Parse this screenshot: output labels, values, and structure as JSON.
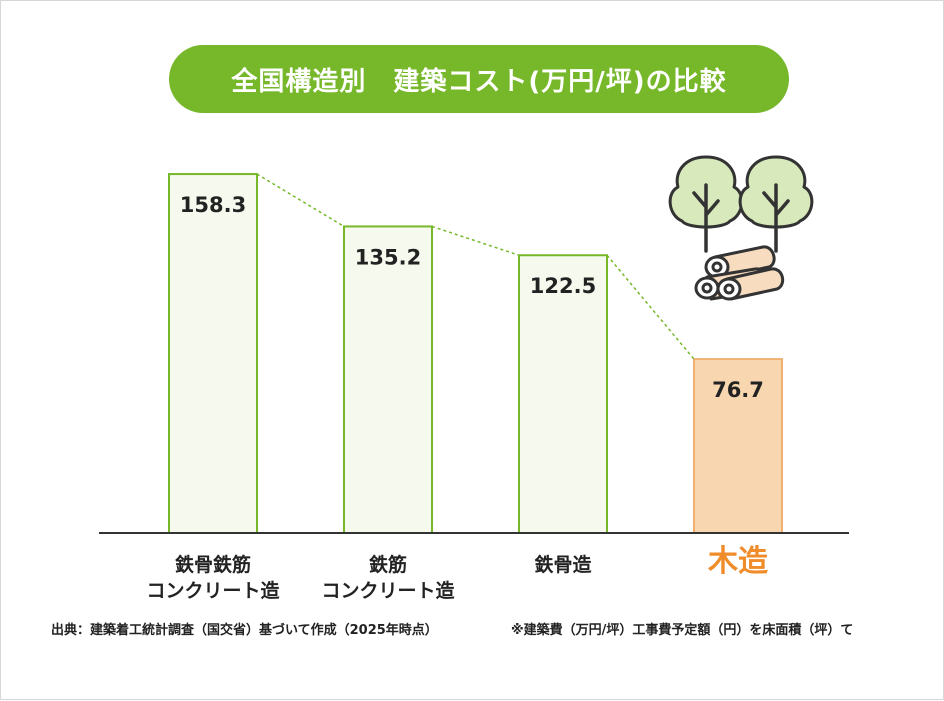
{
  "colors": {
    "accent": "#76b82a",
    "bar_fill": "#f5f9ee",
    "bar_stroke": "#76b82a",
    "highlight_fill": "#f8d7b0",
    "highlight_stroke": "#f0b170",
    "highlight_text": "#f08c2a",
    "axis": "#333333",
    "connector": "#76b82a"
  },
  "chart_data": {
    "type": "bar",
    "title": "全国構造別　建築コスト(万円/坪)の比較",
    "categories": [
      [
        "鉄骨鉄筋",
        "コンクリート造"
      ],
      [
        "鉄筋",
        "コンクリート造"
      ],
      [
        "鉄骨造"
      ],
      [
        "木造"
      ]
    ],
    "values": [
      158.3,
      135.2,
      122.5,
      76.7
    ],
    "value_labels": [
      "158.3",
      "135.2",
      "122.5",
      "76.7"
    ],
    "highlight_index": 3,
    "ylim": [
      0,
      172
    ],
    "grid": false,
    "connector": "dotted line between bar tops"
  },
  "illustration": {
    "icons": [
      "tree-icon",
      "tree-icon",
      "log-pile-icon"
    ]
  },
  "footnotes": {
    "source": "出典：建築着工統計調査（国交省）基づいて作成（2025年時点）",
    "cost_def": "※建築費（万円/坪）工事費予定額（円）を床面積（坪）て"
  }
}
